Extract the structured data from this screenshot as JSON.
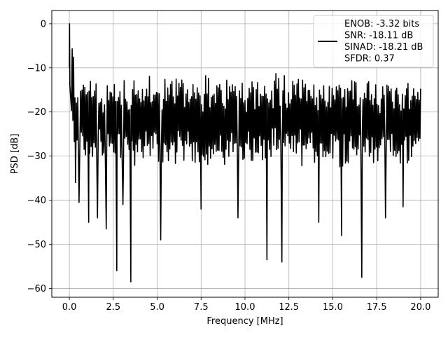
{
  "chart_data": {
    "type": "line",
    "title": "",
    "xlabel": "Frequency [MHz]",
    "ylabel": "PSD [dB]",
    "xlim": [
      -1.0,
      21.0
    ],
    "ylim": [
      -62,
      3
    ],
    "xticks": [
      0.0,
      2.5,
      5.0,
      7.5,
      10.0,
      12.5,
      15.0,
      17.5,
      20.0
    ],
    "xtick_labels": [
      "0.0",
      "2.5",
      "5.0",
      "7.5",
      "10.0",
      "12.5",
      "15.0",
      "17.5",
      "20.0"
    ],
    "yticks": [
      0,
      -10,
      -20,
      -30,
      -40,
      -50,
      -60
    ],
    "ytick_labels": [
      "0",
      "−10",
      "−20",
      "−30",
      "−40",
      "−50",
      "−60"
    ],
    "grid": true,
    "legend_position": "top-right",
    "series": [
      {
        "color": "#000000",
        "x_start": 0.0,
        "x_end": 20.0,
        "points": 500,
        "baseline_db": -22,
        "envelope_upper_db": -14,
        "envelope_lower_db": -30,
        "dc_peak_db": 0,
        "notable_dips": [
          {
            "x": 0.35,
            "y": -36
          },
          {
            "x": 0.55,
            "y": -40.5
          },
          {
            "x": 1.1,
            "y": -45
          },
          {
            "x": 1.6,
            "y": -44
          },
          {
            "x": 2.1,
            "y": -46.5
          },
          {
            "x": 2.7,
            "y": -56
          },
          {
            "x": 3.05,
            "y": -41
          },
          {
            "x": 3.5,
            "y": -58.5
          },
          {
            "x": 5.2,
            "y": -49
          },
          {
            "x": 7.5,
            "y": -42
          },
          {
            "x": 9.6,
            "y": -44
          },
          {
            "x": 11.25,
            "y": -53.5
          },
          {
            "x": 12.1,
            "y": -54
          },
          {
            "x": 14.2,
            "y": -45
          },
          {
            "x": 15.5,
            "y": -48
          },
          {
            "x": 16.65,
            "y": -57.5
          },
          {
            "x": 18.0,
            "y": -44
          },
          {
            "x": 19.0,
            "y": -41.5
          }
        ]
      }
    ],
    "legend": {
      "lines": [
        "ENOB: -3.32 bits",
        "SNR: -18.11 dB",
        "SINAD: -18.21 dB",
        "SFDR: 0.37"
      ]
    }
  }
}
